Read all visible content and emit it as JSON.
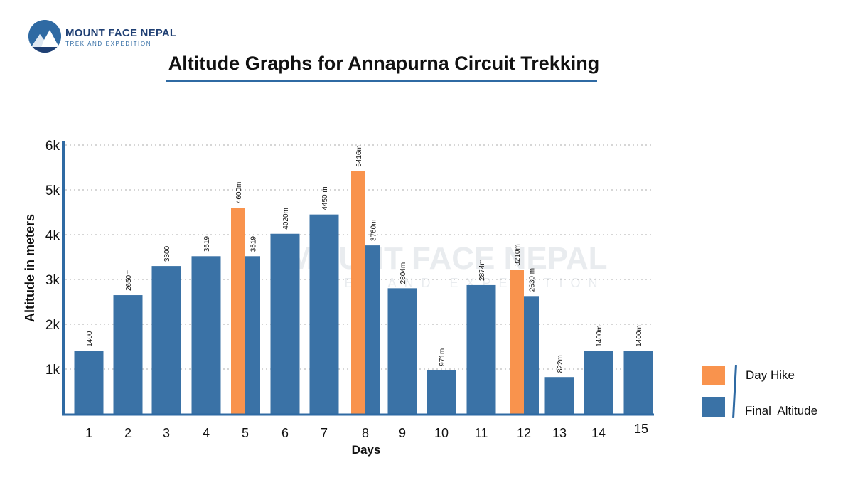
{
  "logo": {
    "name": "MOUNT FACE NEPAL",
    "tagline": "TREK AND EXPEDITION"
  },
  "watermark": {
    "name": "MOUNT FACE NEPAL",
    "tagline": "TREK AND EXPEDITION"
  },
  "colors": {
    "final_altitude": "#3a72a6",
    "day_hike": "#f9934d",
    "axis": "#2f6aa3",
    "title_underline": "#2f6aa3"
  },
  "chart_data": {
    "type": "bar",
    "title": "Altitude Graphs for Annapurna Circuit Trekking",
    "xlabel": "Days",
    "ylabel": "Altitude in meters",
    "ylim": [
      0,
      6000
    ],
    "yticks": [
      {
        "value": 1000,
        "label": "1k"
      },
      {
        "value": 2000,
        "label": "2k"
      },
      {
        "value": 3000,
        "label": "3k"
      },
      {
        "value": 4000,
        "label": "4k"
      },
      {
        "value": 5000,
        "label": "5k"
      },
      {
        "value": 6000,
        "label": "6k"
      }
    ],
    "grid": true,
    "legend_position": "right",
    "categories": [
      "1",
      "2",
      "3",
      "4",
      "5",
      "6",
      "7",
      "8",
      "9",
      "10",
      "11",
      "12",
      "13",
      "14",
      "15"
    ],
    "series": [
      {
        "name": "Day Hike",
        "values": [
          null,
          null,
          null,
          null,
          4600,
          null,
          null,
          5416,
          null,
          null,
          null,
          3210,
          null,
          null,
          null
        ],
        "labels": [
          null,
          null,
          null,
          null,
          "4600m",
          null,
          null,
          "5416m",
          null,
          null,
          null,
          "3210m",
          null,
          null,
          null
        ]
      },
      {
        "name": "Final  Altitude",
        "values": [
          1400,
          2650,
          3300,
          3519,
          3519,
          4020,
          4450,
          3760,
          2804,
          971,
          2874,
          2630,
          822,
          1400,
          1400
        ],
        "labels": [
          "1400",
          "2650m",
          "3300",
          "3519",
          "3519",
          "4020m",
          "4450 m",
          "3760m",
          "2804m",
          "971m",
          "2874m",
          "2630 m",
          "822m",
          "1400m",
          "1400m"
        ]
      }
    ]
  }
}
